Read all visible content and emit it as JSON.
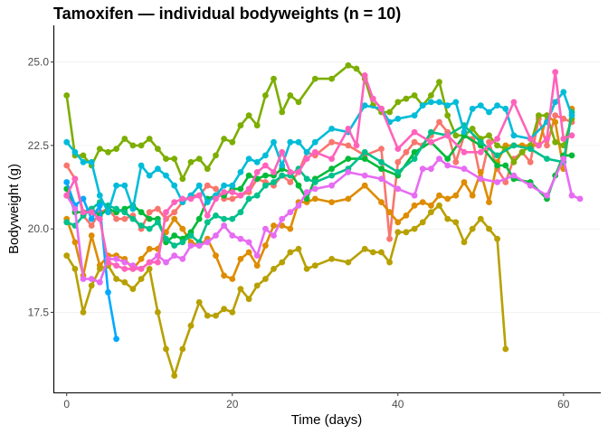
{
  "chart_data": {
    "type": "line",
    "title": "Tamoxifen — individual bodyweights (n = 10)",
    "xlabel": "Time (days)",
    "ylabel": "Bodyweight (g)",
    "xlim": [
      -1.5,
      64.5
    ],
    "ylim": [
      15.1,
      26.1
    ],
    "x_ticks": [
      0,
      20,
      40,
      60
    ],
    "x_tick_labels": [
      "0",
      "20",
      "40",
      "60"
    ],
    "y_ticks": [
      17.5,
      20.0,
      22.5,
      25.0
    ],
    "y_tick_labels": [
      "17.5",
      "20.0",
      "22.5",
      "25.0"
    ],
    "grid": "horizontal",
    "legend": "none",
    "series": [
      {
        "color": "#F8766D",
        "x": [
          0,
          1,
          2,
          3,
          4,
          5,
          6,
          7,
          8,
          9,
          10,
          11,
          12,
          13,
          14,
          15,
          16,
          17,
          18,
          19,
          20,
          21,
          22,
          23,
          24,
          25,
          26,
          27,
          28,
          29,
          30,
          32,
          34,
          36,
          38,
          39,
          40,
          41,
          42,
          43,
          44,
          45,
          46,
          47,
          48,
          49,
          50,
          51,
          52,
          53,
          54,
          55,
          56,
          57,
          58,
          59,
          60,
          61
        ],
        "y": [
          21.9,
          21.5,
          20.4,
          20.1,
          20.5,
          20.6,
          20.3,
          20.3,
          20.4,
          20.0,
          20.5,
          20.6,
          20.3,
          20.5,
          20.8,
          21.0,
          21.0,
          21.3,
          21.2,
          20.9,
          20.9,
          21.0,
          21.1,
          21.5,
          21.4,
          21.3,
          21.6,
          21.4,
          21.7,
          22.3,
          22.2,
          22.6,
          22.5,
          22.2,
          22.4,
          19.7,
          22.0,
          22.3,
          22.6,
          22.5,
          22.8,
          23.2,
          22.9,
          22.0,
          22.8,
          22.7,
          21.5,
          22.6,
          21.8,
          21.4,
          22.1,
          22.3,
          22.0,
          23.3,
          22.5,
          23.4,
          23.3,
          23.2
        ]
      },
      {
        "color": "#DE8C00",
        "x": [
          0,
          1,
          2,
          3,
          4,
          5,
          6,
          7,
          8,
          9,
          10,
          11,
          12,
          13,
          14,
          15,
          16,
          17,
          18,
          19,
          20,
          21,
          22,
          23,
          24,
          25,
          26,
          27,
          28,
          29,
          30,
          32,
          34,
          36,
          38,
          39,
          40,
          41,
          42,
          43,
          44,
          45,
          46,
          47,
          48,
          49,
          50,
          51,
          52,
          53,
          54,
          55,
          56,
          57,
          58,
          59,
          60,
          61
        ],
        "y": [
          20.3,
          19.6,
          18.6,
          19.8,
          18.9,
          19.2,
          19.2,
          19.1,
          18.8,
          19.1,
          19.4,
          19.4,
          19.9,
          20.3,
          20.0,
          19.6,
          19.5,
          19.7,
          19.2,
          18.6,
          18.5,
          19.1,
          19.3,
          18.9,
          19.5,
          20.1,
          20.1,
          20.0,
          20.8,
          20.8,
          20.9,
          20.8,
          20.9,
          21.3,
          20.8,
          20.5,
          20.2,
          20.4,
          20.7,
          20.8,
          20.7,
          21.0,
          20.9,
          21.0,
          21.4,
          21.0,
          21.7,
          20.8,
          22.0,
          22.5,
          22.5,
          22.5,
          22.5,
          22.5,
          23.4,
          23.2,
          21.8,
          23.6
        ]
      },
      {
        "color": "#B7A000",
        "x": [
          0,
          1,
          2,
          3,
          4,
          5,
          6,
          7,
          8,
          9,
          10,
          11,
          12,
          13,
          14,
          15,
          16,
          17,
          18,
          19,
          20,
          21,
          22,
          23,
          24,
          25,
          26,
          27,
          28,
          29,
          30,
          32,
          34,
          36,
          37,
          38,
          39,
          40,
          41,
          42,
          43,
          44,
          45,
          46,
          47,
          48,
          49,
          50,
          51,
          52,
          53
        ],
        "y": [
          19.2,
          18.8,
          17.5,
          18.3,
          18.8,
          18.9,
          18.5,
          18.4,
          18.2,
          18.5,
          18.8,
          17.5,
          16.4,
          15.6,
          16.4,
          17.1,
          17.8,
          17.4,
          17.4,
          17.6,
          17.5,
          18.2,
          17.9,
          18.3,
          18.5,
          18.8,
          19.0,
          19.3,
          19.4,
          18.8,
          18.9,
          19.1,
          19.0,
          19.4,
          19.3,
          19.3,
          19.0,
          19.9,
          19.9,
          20.0,
          20.2,
          20.5,
          20.7,
          20.3,
          20.2,
          19.6,
          20.0,
          20.3,
          20.0,
          19.7,
          16.4
        ]
      },
      {
        "color": "#7CAE00",
        "x": [
          0,
          1,
          2,
          3,
          4,
          5,
          6,
          7,
          8,
          9,
          10,
          11,
          12,
          13,
          14,
          15,
          16,
          17,
          18,
          19,
          20,
          21,
          22,
          23,
          24,
          25,
          26,
          27,
          28,
          30,
          32,
          34,
          35,
          36,
          37,
          38,
          39,
          40,
          41,
          42,
          43,
          44,
          45,
          46,
          47,
          48,
          49,
          50,
          51,
          52,
          53,
          54,
          55,
          56,
          57,
          58,
          59,
          60,
          61
        ],
        "y": [
          24.0,
          22.2,
          22.2,
          21.9,
          22.4,
          22.3,
          22.4,
          22.7,
          22.5,
          22.5,
          22.7,
          22.4,
          22.1,
          22.1,
          21.5,
          22.0,
          22.1,
          21.8,
          22.2,
          22.7,
          22.6,
          23.1,
          23.4,
          23.1,
          24.0,
          24.5,
          23.5,
          24.0,
          23.8,
          24.5,
          24.5,
          24.9,
          24.8,
          24.5,
          23.7,
          23.5,
          23.5,
          23.8,
          23.9,
          24.0,
          23.7,
          24.0,
          24.4,
          23.4,
          22.8,
          22.8,
          23.0,
          22.7,
          22.8,
          22.5,
          22.4,
          22.0,
          22.3,
          22.5,
          23.4,
          23.4,
          22.6,
          22.5,
          23.3
        ]
      },
      {
        "color": "#00BA38",
        "x": [
          0,
          1,
          2,
          3,
          4,
          5,
          6,
          7,
          8,
          9,
          10,
          11,
          12,
          13,
          14,
          15,
          16,
          17,
          18,
          19,
          20,
          21,
          22,
          23,
          24,
          25,
          26,
          27,
          28,
          29,
          30,
          32,
          34,
          36,
          38,
          40,
          42,
          44,
          46,
          48,
          50,
          52,
          53,
          54,
          56,
          58,
          59,
          60,
          61
        ],
        "y": [
          21.2,
          20.5,
          20.5,
          20.6,
          20.4,
          20.6,
          20.5,
          20.6,
          20.7,
          20.5,
          20.3,
          20.3,
          19.6,
          19.8,
          19.7,
          19.9,
          20.3,
          20.9,
          21.0,
          21.0,
          21.2,
          21.2,
          21.6,
          21.5,
          21.6,
          21.6,
          21.8,
          21.7,
          21.3,
          20.9,
          21.5,
          21.8,
          22.1,
          22.1,
          21.8,
          21.6,
          22.3,
          22.6,
          22.1,
          22.8,
          22.5,
          21.9,
          21.9,
          21.5,
          21.4,
          20.9,
          21.6,
          22.2,
          22.2
        ]
      },
      {
        "color": "#00C08B",
        "x": [
          0,
          1,
          2,
          3,
          4,
          5,
          6,
          7,
          8,
          9,
          10,
          11,
          12,
          13,
          14,
          15,
          16,
          17,
          18,
          19,
          20,
          21,
          22,
          23,
          24,
          25,
          26,
          27,
          28,
          29,
          30,
          32,
          34,
          36,
          38,
          40,
          42,
          44,
          46,
          48,
          50,
          52,
          54,
          56,
          58,
          60,
          61
        ],
        "y": [
          20.2,
          20.1,
          20.4,
          20.6,
          20.8,
          20.7,
          20.6,
          20.5,
          20.3,
          20.1,
          20.0,
          20.2,
          19.7,
          19.5,
          19.6,
          19.8,
          19.6,
          20.2,
          20.4,
          20.3,
          20.3,
          20.5,
          20.9,
          21.0,
          21.3,
          21.4,
          21.6,
          21.6,
          21.8,
          21.5,
          21.4,
          21.6,
          21.8,
          22.3,
          22.0,
          21.7,
          22.1,
          22.9,
          22.8,
          23.1,
          22.6,
          22.2,
          22.5,
          22.4,
          22.1,
          22.0,
          23.5
        ]
      },
      {
        "color": "#00BCD8",
        "x": [
          0,
          1,
          2,
          3,
          4,
          5,
          6,
          7,
          8,
          9,
          10,
          11,
          12,
          13,
          14,
          15,
          16,
          17,
          18,
          19,
          20,
          21,
          22,
          23,
          24,
          25,
          26,
          27,
          28,
          29,
          30,
          32,
          34,
          36,
          38,
          39,
          40,
          42,
          43,
          44,
          45,
          46,
          47,
          48,
          49,
          50,
          51,
          52,
          53,
          54,
          56,
          58,
          59,
          60,
          61
        ],
        "y": [
          22.6,
          22.3,
          22.0,
          22.0,
          21.0,
          20.5,
          21.3,
          21.3,
          20.6,
          21.9,
          21.6,
          21.8,
          21.6,
          21.3,
          20.8,
          21.0,
          21.3,
          20.8,
          21.0,
          21.3,
          21.3,
          21.7,
          22.1,
          22.0,
          22.2,
          22.6,
          21.9,
          22.6,
          22.6,
          22.3,
          22.6,
          23.0,
          22.9,
          23.7,
          23.6,
          23.2,
          23.3,
          23.4,
          23.7,
          23.8,
          23.8,
          23.7,
          23.8,
          22.9,
          23.6,
          23.7,
          23.5,
          23.7,
          23.6,
          22.8,
          22.7,
          23.2,
          23.8,
          24.1,
          23.4
        ]
      },
      {
        "color": "#00A9FF",
        "x": [
          0,
          1,
          2,
          3,
          4,
          5,
          6
        ],
        "y": [
          21.4,
          20.7,
          20.9,
          20.3,
          20.7,
          18.1,
          16.7
        ]
      },
      {
        "color": "#E76BF3",
        "x": [
          0,
          1,
          2,
          3,
          4,
          5,
          6,
          7,
          8,
          9,
          10,
          11,
          12,
          13,
          14,
          15,
          16,
          17,
          18,
          19,
          20,
          21,
          22,
          23,
          24,
          25,
          26,
          27,
          28,
          29,
          30,
          32,
          34,
          36,
          38,
          40,
          42,
          43,
          44,
          45,
          46,
          48,
          50,
          52,
          54,
          56,
          58,
          60,
          61,
          62
        ],
        "y": [
          21.0,
          20.6,
          18.5,
          18.5,
          18.4,
          19.1,
          19.1,
          19.0,
          18.9,
          18.8,
          19.0,
          19.2,
          19.0,
          19.2,
          19.1,
          19.5,
          19.5,
          19.6,
          19.8,
          20.1,
          19.8,
          19.7,
          19.6,
          19.2,
          20.0,
          19.8,
          20.3,
          20.5,
          20.7,
          21.1,
          21.2,
          21.3,
          21.7,
          21.6,
          21.5,
          21.2,
          21.0,
          21.8,
          21.8,
          22.1,
          21.9,
          21.8,
          21.5,
          21.4,
          21.6,
          21.3,
          21.0,
          22.1,
          21.0,
          20.9
        ]
      },
      {
        "color": "#FF62BC",
        "x": [
          0,
          1,
          2,
          3,
          4,
          5,
          6,
          7,
          8,
          9,
          10,
          11,
          12,
          13,
          14,
          15,
          16,
          17,
          18,
          19,
          20,
          21,
          22,
          23,
          24,
          25,
          26,
          27,
          28,
          29,
          30,
          32,
          34,
          35,
          36,
          37,
          38,
          40,
          42,
          44,
          46,
          48,
          50,
          52,
          54,
          56,
          57,
          58,
          59,
          60,
          61
        ],
        "y": [
          21.0,
          21.5,
          20.5,
          20.5,
          20.3,
          19.0,
          18.9,
          18.8,
          18.8,
          18.8,
          19.0,
          19.0,
          20.5,
          20.8,
          20.9,
          20.9,
          21.0,
          20.4,
          20.9,
          21.1,
          21.1,
          21.0,
          21.2,
          21.7,
          21.9,
          21.7,
          22.3,
          21.7,
          21.7,
          22.1,
          22.3,
          22.1,
          23.0,
          22.5,
          24.6,
          23.9,
          23.6,
          22.4,
          22.9,
          22.6,
          22.8,
          22.3,
          22.3,
          22.7,
          23.8,
          22.7,
          22.5,
          22.7,
          24.7,
          22.7,
          22.8
        ]
      }
    ]
  }
}
